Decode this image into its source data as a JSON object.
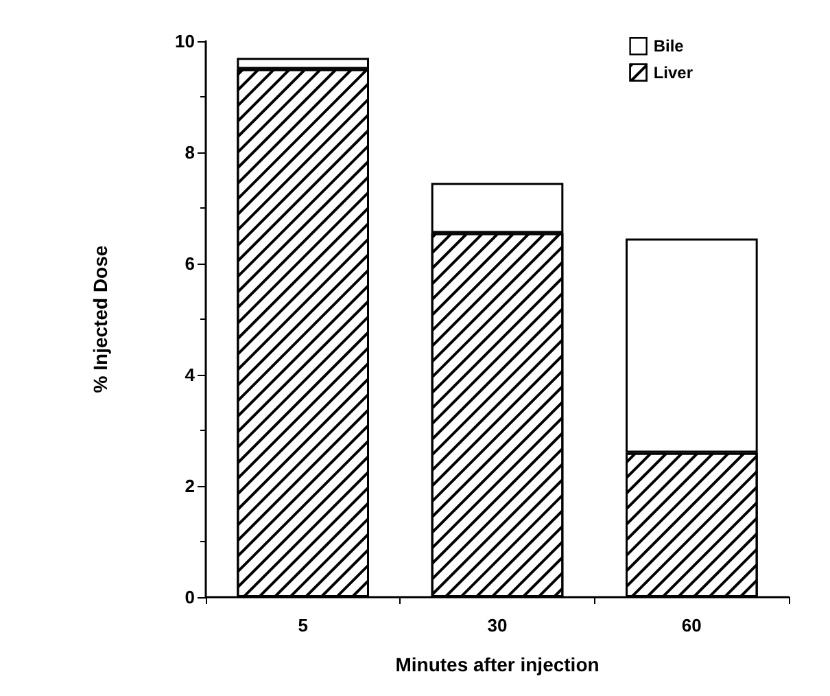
{
  "chart_data": {
    "type": "bar",
    "stacked": true,
    "xlabel": "Minutes after injection",
    "ylabel": "% Injected Dose",
    "categories": [
      "5",
      "30",
      "60"
    ],
    "series": [
      {
        "name": "Liver",
        "color": "#ffffff",
        "values": [
          9.5,
          6.55,
          2.6
        ]
      },
      {
        "name": "Bile",
        "color": "#ffffff",
        "values": [
          0.2,
          0.9,
          3.85
        ]
      }
    ],
    "ylim": [
      0,
      10
    ],
    "yticks": [
      0,
      2,
      4,
      6,
      8,
      10
    ],
    "grid": false,
    "legend": "top right"
  }
}
